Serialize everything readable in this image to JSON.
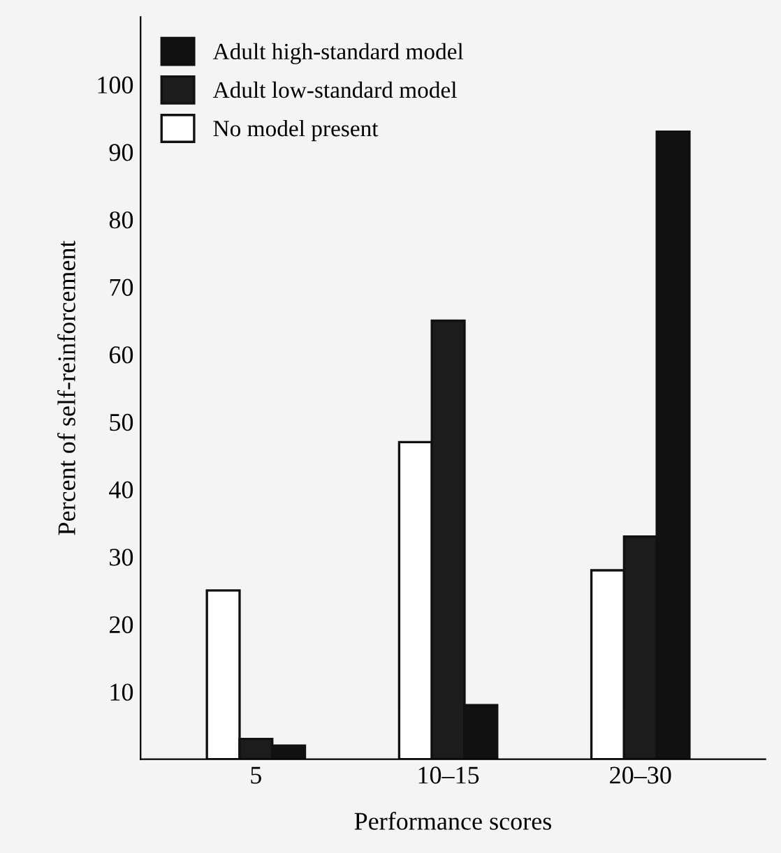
{
  "chart_data": {
    "type": "bar",
    "xlabel": "Performance scores",
    "ylabel": "Percent of self-reinforcement",
    "categories": [
      "5",
      "10–15",
      "20–30"
    ],
    "series": [
      {
        "name": "No model present",
        "color": "#ffffff",
        "values": [
          25,
          47,
          28
        ]
      },
      {
        "name": "Adult low-standard model",
        "color": "#1c1c1c",
        "values": [
          3,
          65,
          33
        ]
      },
      {
        "name": "Adult high-standard model",
        "color": "#111111",
        "values": [
          2,
          8,
          93
        ]
      }
    ],
    "ylim": [
      0,
      110
    ],
    "yticks": [
      10,
      20,
      30,
      40,
      50,
      60,
      70,
      80,
      90,
      100
    ],
    "grid": false,
    "legend": "top left"
  }
}
